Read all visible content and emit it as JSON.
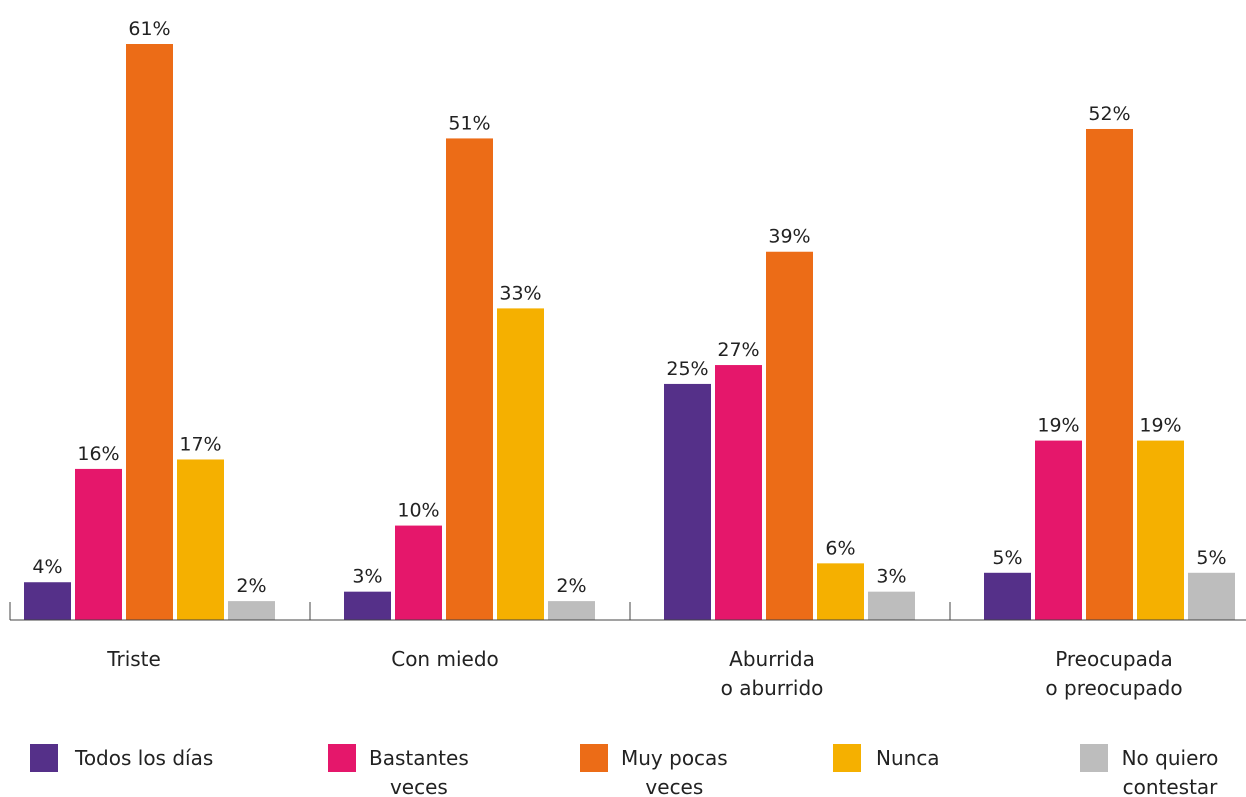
{
  "chart_data": {
    "type": "bar",
    "categories": [
      [
        "Triste"
      ],
      [
        "Con miedo"
      ],
      [
        "Aburrida",
        "o aburrido"
      ],
      [
        "Preocupada",
        "o preocupado"
      ]
    ],
    "series": [
      {
        "name": [
          "Todos los días"
        ],
        "color": "#553089",
        "values": [
          4,
          3,
          25,
          5
        ],
        "labels": [
          "4%",
          "3%",
          "25%",
          "5%"
        ]
      },
      {
        "name": [
          "Bastantes",
          "veces"
        ],
        "color": "#E5176B",
        "values": [
          16,
          10,
          27,
          19
        ],
        "labels": [
          "16%",
          "10%",
          "27%",
          "19%"
        ]
      },
      {
        "name": [
          "Muy pocas",
          "veces"
        ],
        "color": "#EC6C17",
        "values": [
          61,
          51,
          39,
          52
        ],
        "labels": [
          "61%",
          "51%",
          "39%",
          "52%"
        ]
      },
      {
        "name": [
          "Nunca"
        ],
        "color": "#F5B000",
        "values": [
          17,
          33,
          6,
          19
        ],
        "labels": [
          "17%",
          "33%",
          "6%",
          "19%"
        ]
      },
      {
        "name": [
          "No quiero",
          "contestar"
        ],
        "color": "#BDBDBD",
        "values": [
          2,
          2,
          3,
          5
        ],
        "labels": [
          "2%",
          "2%",
          "3%",
          "5%"
        ]
      }
    ],
    "ylim": [
      0,
      61
    ],
    "unit": "%",
    "grid": false,
    "legend_position": "bottom"
  }
}
